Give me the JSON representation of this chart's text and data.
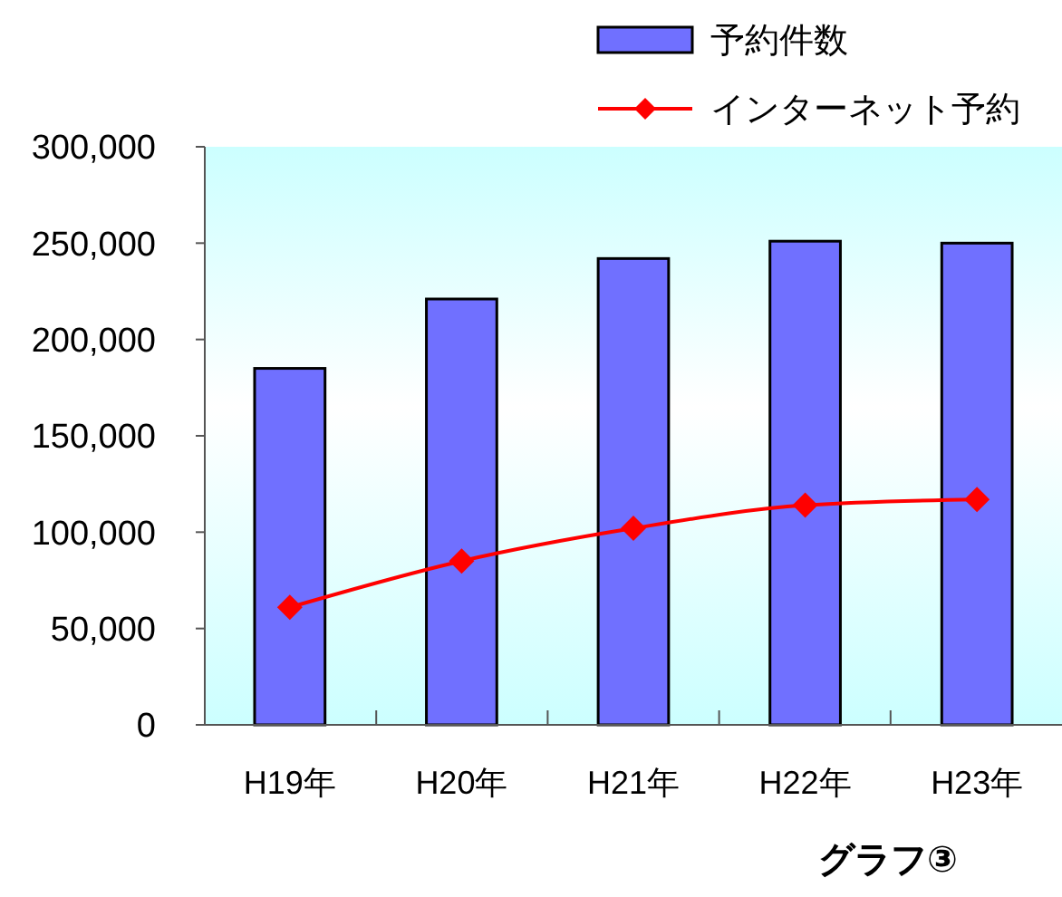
{
  "chart_data": {
    "type": "bar",
    "categories": [
      "H19年",
      "H20年",
      "H21年",
      "H22年",
      "H23年"
    ],
    "series": [
      {
        "name": "予約件数",
        "color": "#7070ff",
        "values": [
          185000,
          221000,
          242000,
          251000,
          250000
        ]
      },
      {
        "name": "インターネット予約",
        "type": "line",
        "color": "#ff0000",
        "marker": "diamond",
        "values": [
          61000,
          85000,
          102000,
          114000,
          117000
        ]
      }
    ],
    "ylim": [
      0,
      300000
    ],
    "yticks": [
      {
        "value": 0,
        "label": "0"
      },
      {
        "value": 50000,
        "label": "50,000"
      },
      {
        "value": 100000,
        "label": "100,000"
      },
      {
        "value": 150000,
        "label": "150,000"
      },
      {
        "value": 200000,
        "label": "200,000"
      },
      {
        "value": 250000,
        "label": "250,000"
      },
      {
        "value": 300000,
        "label": "300,000"
      }
    ],
    "grid": false,
    "legend": "top right",
    "annotations": [
      "グラフ③"
    ]
  }
}
